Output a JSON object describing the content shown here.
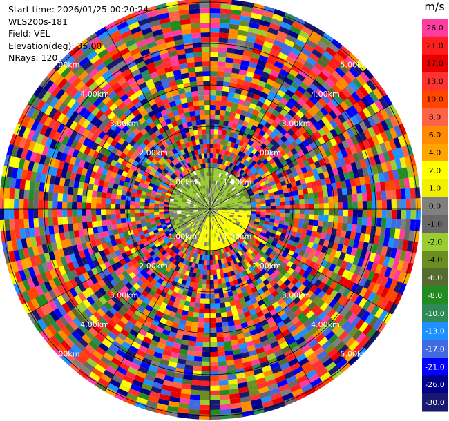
{
  "header": {
    "start_time": "Start time: 2026/01/25 00:20:24",
    "station": "WLS200s-181",
    "field": "Field: VEL",
    "elevation": "Elevation(deg): 35.00",
    "nrays": "NRays: 120"
  },
  "colorbar": {
    "unit": "m/s",
    "levels": [
      {
        "label": "26.0",
        "color": "#ff3ca0"
      },
      {
        "label": "21.0",
        "color": "#ff1e1e"
      },
      {
        "label": "17.0",
        "color": "#e80000"
      },
      {
        "label": "13.0",
        "color": "#ff3232"
      },
      {
        "label": "10.0",
        "color": "#ff4500"
      },
      {
        "label": "8.0",
        "color": "#ff6347"
      },
      {
        "label": "6.0",
        "color": "#ff8c00"
      },
      {
        "label": "4.0",
        "color": "#ffa500"
      },
      {
        "label": "2.0",
        "color": "#ffff00"
      },
      {
        "label": "1.0",
        "color": "#f0f000"
      },
      {
        "label": "0.0",
        "color": "#808080"
      },
      {
        "label": "-1.0",
        "color": "#696969"
      },
      {
        "label": "-2.0",
        "color": "#9acd32"
      },
      {
        "label": "-4.0",
        "color": "#6b8e23"
      },
      {
        "label": "-6.0",
        "color": "#556b2f"
      },
      {
        "label": "-8.0",
        "color": "#228b22"
      },
      {
        "label": "-10.0",
        "color": "#2e8b57"
      },
      {
        "label": "-13.0",
        "color": "#1e90ff"
      },
      {
        "label": "-17.0",
        "color": "#4169e1"
      },
      {
        "label": "-21.0",
        "color": "#0000ff"
      },
      {
        "label": "-26.0",
        "color": "#00008b"
      },
      {
        "label": "-30.0",
        "color": "#191970"
      }
    ]
  },
  "chart_data": {
    "type": "heatmap",
    "projection": "polar (PPI)",
    "field": "VEL",
    "unit": "m/s",
    "n_rays": 120,
    "elevation_deg": 35.0,
    "range_rings_km": [
      1,
      2,
      3,
      4,
      5
    ],
    "ring_labels": [
      "1.00km",
      "2.00km",
      "3.00km",
      "4.00km",
      "5.00km"
    ],
    "color_levels": [
      -30,
      -26,
      -21,
      -17,
      -13,
      -10,
      -8,
      -6,
      -4,
      -2,
      -1,
      0,
      1,
      2,
      4,
      6,
      8,
      10,
      13,
      17,
      21,
      26
    ],
    "near_field": "rings 0-1 km: mostly -2 to -4 m/s (west/north) and 1 to 2 m/s (south-east)",
    "far_field": "beyond ~1 km: noisy velocities spanning the full color range"
  }
}
